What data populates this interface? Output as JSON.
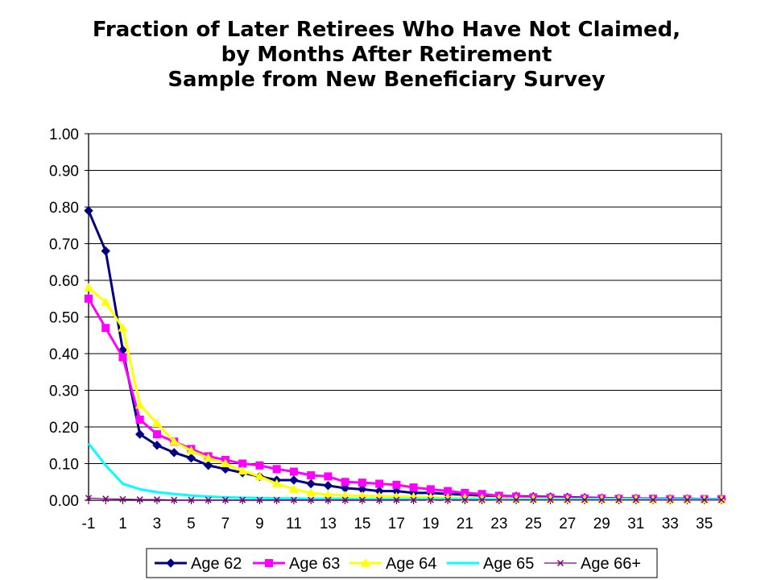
{
  "chart_data": {
    "type": "line",
    "title_lines": [
      "Fraction of Later Retirees Who Have Not Claimed,",
      "by Months After Retirement",
      "Sample from New Beneficiary Survey"
    ],
    "xlabel": "",
    "ylabel": "",
    "x": [
      -1,
      0,
      1,
      2,
      3,
      4,
      5,
      6,
      7,
      8,
      9,
      10,
      11,
      12,
      13,
      14,
      15,
      16,
      17,
      18,
      19,
      20,
      21,
      22,
      23,
      24,
      25,
      26,
      27,
      28,
      29,
      30,
      31,
      32,
      33,
      34,
      35,
      36
    ],
    "x_tick_labels": [
      "-1",
      "1",
      "3",
      "5",
      "7",
      "9",
      "11",
      "13",
      "15",
      "17",
      "19",
      "21",
      "23",
      "25",
      "27",
      "29",
      "31",
      "33",
      "35"
    ],
    "ylim": [
      0,
      1.0
    ],
    "y_ticks": [
      "0.00",
      "0.10",
      "0.20",
      "0.30",
      "0.40",
      "0.50",
      "0.60",
      "0.70",
      "0.80",
      "0.90",
      "1.00"
    ],
    "grid": "horizontal",
    "legend_position": "bottom",
    "series": [
      {
        "name": "Age 62",
        "color": "#000080",
        "marker": "diamond",
        "values": [
          0.79,
          0.68,
          0.41,
          0.18,
          0.15,
          0.13,
          0.115,
          0.095,
          0.085,
          0.075,
          0.065,
          0.055,
          0.055,
          0.045,
          0.04,
          0.033,
          0.03,
          0.025,
          0.025,
          0.02,
          0.02,
          0.017,
          0.015,
          0.013,
          0.012,
          0.011,
          0.01,
          0.009,
          0.008,
          0.007,
          0.006,
          0.005,
          0.005,
          0.004,
          0.004,
          0.004,
          0.003,
          0.003
        ]
      },
      {
        "name": "Age 63",
        "color": "#ff00ff",
        "marker": "square",
        "values": [
          0.55,
          0.47,
          0.39,
          0.22,
          0.18,
          0.16,
          0.14,
          0.12,
          0.11,
          0.1,
          0.095,
          0.085,
          0.078,
          0.068,
          0.065,
          0.05,
          0.048,
          0.045,
          0.042,
          0.035,
          0.03,
          0.025,
          0.02,
          0.017,
          0.012,
          0.01,
          0.008,
          0.007,
          0.006,
          0.005,
          0.005,
          0.004,
          0.004,
          0.004,
          0.003,
          0.003,
          0.003,
          0.003
        ]
      },
      {
        "name": "Age 64",
        "color": "#ffff00",
        "marker": "triangle",
        "values": [
          0.58,
          0.54,
          0.47,
          0.26,
          0.21,
          0.16,
          0.135,
          0.115,
          0.1,
          0.08,
          0.065,
          0.045,
          0.03,
          0.02,
          0.015,
          0.013,
          0.012,
          0.011,
          0.01,
          0.009,
          0.008,
          0.007,
          0.006,
          0.005,
          0.005,
          0.004,
          0.004,
          0.004,
          0.003,
          0.003,
          0.003,
          0.003,
          0.003,
          0.002,
          0.002,
          0.002,
          0.002,
          0.002
        ]
      },
      {
        "name": "Age 65",
        "color": "#00ffff",
        "marker": "none",
        "values": [
          0.155,
          0.095,
          0.045,
          0.03,
          0.022,
          0.017,
          0.013,
          0.01,
          0.008,
          0.007,
          0.006,
          0.005,
          0.005,
          0.004,
          0.004,
          0.004,
          0.003,
          0.003,
          0.003,
          0.003,
          0.003,
          0.003,
          0.003,
          0.003,
          0.002,
          0.002,
          0.002,
          0.002,
          0.002,
          0.002,
          0.002,
          0.002,
          0.002,
          0.002,
          0.002,
          0.002,
          0.002,
          0.002
        ]
      },
      {
        "name": "Age 66+",
        "color": "#800080",
        "marker": "x",
        "values": [
          0.006,
          0.004,
          0.003,
          0.002,
          0.002,
          0.001,
          0.001,
          0.001,
          0.001,
          0.001,
          0.001,
          0.001,
          0.001,
          0.001,
          0.001,
          0.001,
          0.001,
          0.001,
          0.001,
          0.001,
          0.001,
          0.001,
          0.001,
          0.001,
          0.001,
          0.001,
          0.001,
          0.001,
          0.001,
          0.001,
          0.001,
          0.001,
          0.001,
          0.001,
          0.001,
          0.001,
          0.001,
          0.001
        ]
      }
    ]
  }
}
